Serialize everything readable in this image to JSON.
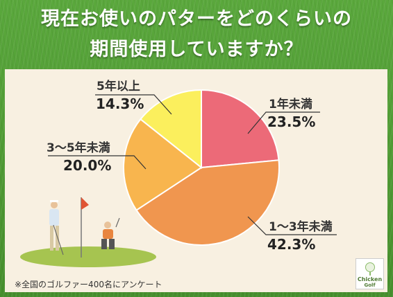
{
  "title_line1": "現在お使いのパターをどのくらいの",
  "title_line2": "期間使用していますか？",
  "chart_data": {
    "type": "pie",
    "categories": [
      "1年未満",
      "1〜3年未満",
      "3〜5年未満",
      "5年以上"
    ],
    "values": [
      23.5,
      42.3,
      20.0,
      14.3
    ],
    "labels": [
      "23.5%",
      "42.3%",
      "20.0%",
      "14.3%"
    ],
    "colors": [
      "#ec6a78",
      "#f0964f",
      "#f8b54e",
      "#fbef5d"
    ],
    "start_angle_deg": 0,
    "direction": "clockwise"
  },
  "footnote": "※全国のゴルファー400名にアンケート",
  "logo": {
    "line1": "Chicken",
    "line2": "Golf"
  }
}
